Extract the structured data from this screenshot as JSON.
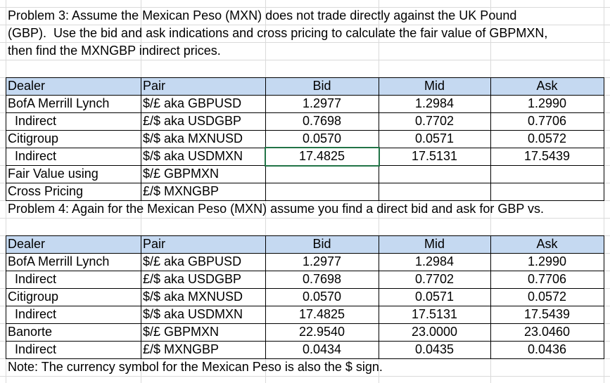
{
  "problem3": {
    "lines": [
      "Problem 3: Assume the Mexican Peso (MXN) does not trade directly against the UK Pound",
      "(GBP).  Use the bid and ask indications and cross pricing to calculate the fair value of GBPMXN,",
      "then find the MXNGBP indirect prices."
    ],
    "table": {
      "header": [
        "Dealer",
        "Pair",
        "Bid",
        "Mid",
        "Ask"
      ],
      "rows": [
        [
          "BofA Merrill Lynch",
          "$/£ aka GBPUSD",
          "1.2977",
          "1.2984",
          "1.2990"
        ],
        [
          "  Indirect",
          "£/$ aka USDGBP",
          "0.7698",
          "0.7702",
          "0.7706"
        ],
        [
          "Citigroup",
          "$/$ aka MXNUSD",
          "0.0570",
          "0.0571",
          "0.0572"
        ],
        [
          "  Indirect",
          "$/$ aka USDMXN",
          "17.4825",
          "17.5131",
          "17.5439"
        ],
        [
          "Fair Value using",
          "$/£ GBPMXN"
        ],
        [
          "Cross Pricing",
          "£/$ MXNGBP"
        ]
      ]
    }
  },
  "problem4": {
    "lines": [
      "Problem 4: Again for the Mexican Peso (MXN) assume you find a direct bid and ask for GBP vs."
    ],
    "table": {
      "header": [
        "Dealer",
        "Pair",
        "Bid",
        "Mid",
        "Ask"
      ],
      "rows": [
        [
          "BofA Merrill Lynch",
          "$/£ aka GBPUSD",
          "1.2977",
          "1.2984",
          "1.2990"
        ],
        [
          "  Indirect",
          "£/$ aka USDGBP",
          "0.7698",
          "0.7702",
          "0.7706"
        ],
        [
          "Citigroup",
          "$/$ aka MXNUSD",
          "0.0570",
          "0.0571",
          "0.0572"
        ],
        [
          "  Indirect",
          "$/$ aka USDMXN",
          "17.4825",
          "17.5131",
          "17.5439"
        ],
        [
          "Banorte",
          "$/£ GBPMXN",
          "22.9540",
          "23.0000",
          "23.0460"
        ],
        [
          "  Indirect",
          "£/$ MXNGBP",
          "0.0434",
          "0.0435",
          "0.0436"
        ]
      ]
    },
    "note": "Note: The currency symbol for the Mexican Peso is also the $ sign."
  }
}
